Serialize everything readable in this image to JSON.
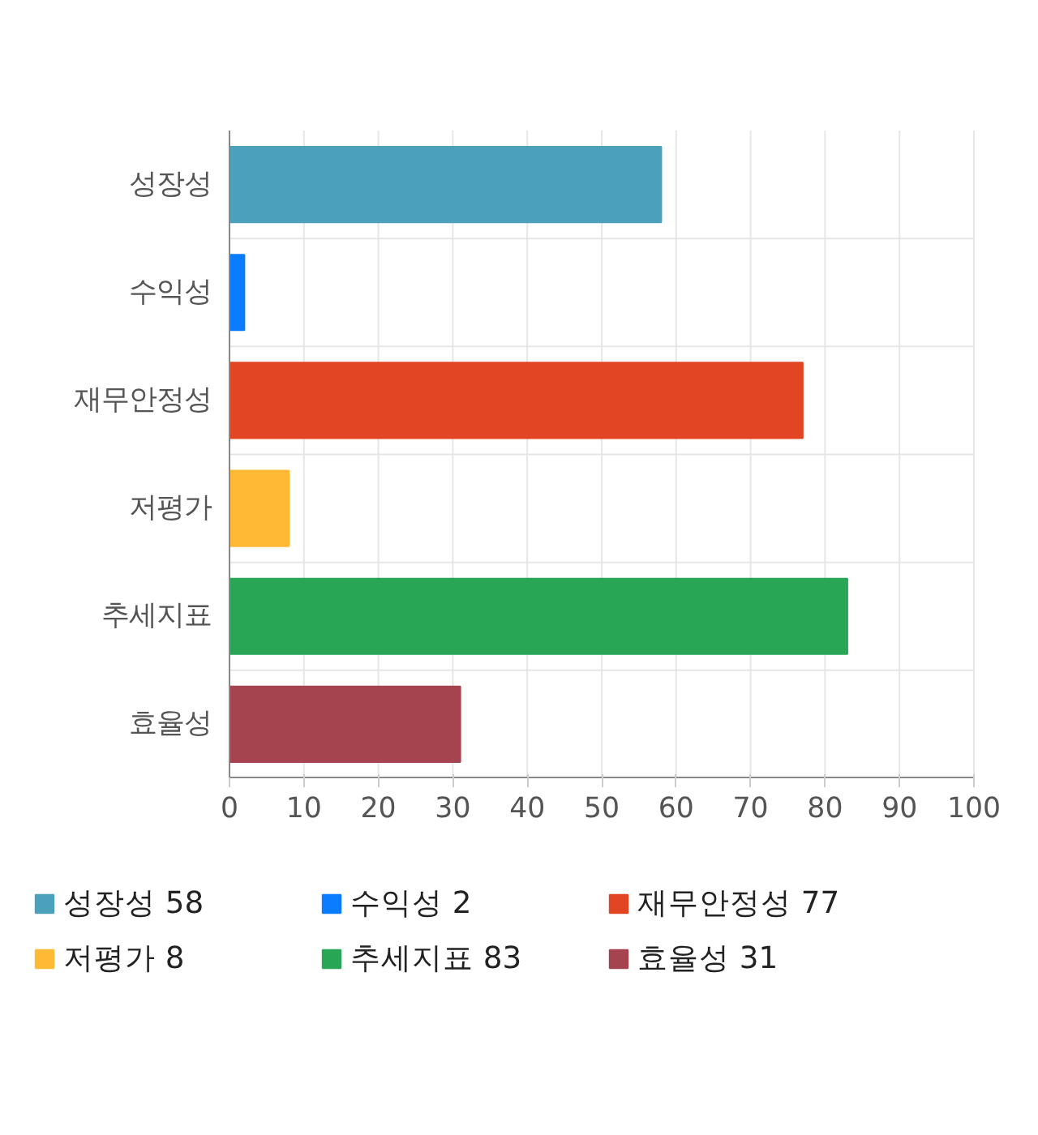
{
  "chart_data": {
    "type": "bar",
    "orientation": "horizontal",
    "stacked": true,
    "categories": [
      "성장성",
      "수익성",
      "재무안정성",
      "저평가",
      "추세지표",
      "효율성"
    ],
    "series": [
      {
        "name": "성장성 58",
        "color": "#4ba1bb",
        "values": [
          58,
          null,
          null,
          null,
          null,
          null
        ]
      },
      {
        "name": "수익성 2",
        "color": "#0a7cff",
        "values": [
          null,
          2,
          null,
          null,
          null,
          null
        ]
      },
      {
        "name": "재무안정성 77",
        "color": "#e24523",
        "values": [
          null,
          null,
          77,
          null,
          null,
          null
        ]
      },
      {
        "name": "저평가 8",
        "color": "#ffb934",
        "values": [
          null,
          null,
          null,
          8,
          null,
          null
        ]
      },
      {
        "name": "추세지표 83",
        "color": "#28a655",
        "values": [
          null,
          null,
          null,
          null,
          83,
          null
        ]
      },
      {
        "name": "효율성 31",
        "color": "#a5434f",
        "values": [
          null,
          null,
          null,
          null,
          null,
          31
        ]
      }
    ],
    "xlim": [
      0,
      100
    ],
    "xticks": [
      0,
      10,
      20,
      30,
      40,
      50,
      60,
      70,
      80,
      90,
      100
    ],
    "grid": true,
    "legend": "bottom"
  }
}
